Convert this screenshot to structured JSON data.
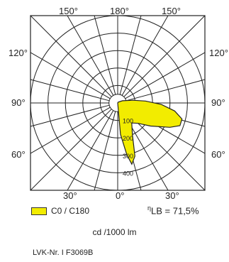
{
  "chart_data": {
    "type": "polar",
    "angle_labels": {
      "top": [
        "150°",
        "180°",
        "150°"
      ],
      "left": [
        "120°",
        "90°",
        "60°"
      ],
      "right": [
        "120°",
        "90°",
        "60°"
      ],
      "bottom": [
        "30°",
        "0°",
        "30°"
      ]
    },
    "radial_ticks": [
      100,
      200,
      300,
      400
    ],
    "rmax": 500,
    "series": [
      {
        "name": "C0 / C180",
        "color": "#f2ec00",
        "points": [
          {
            "angle": 0,
            "value": 0
          },
          {
            "angle": 5,
            "value": 180
          },
          {
            "angle": 10,
            "value": 300
          },
          {
            "angle": 13,
            "value": 360
          },
          {
            "angle": 18,
            "value": 320
          },
          {
            "angle": 25,
            "value": 200
          },
          {
            "angle": 35,
            "value": 140
          },
          {
            "angle": 45,
            "value": 165
          },
          {
            "angle": 55,
            "value": 230
          },
          {
            "angle": 65,
            "value": 330
          },
          {
            "angle": 70,
            "value": 380
          },
          {
            "angle": 76,
            "value": 380
          },
          {
            "angle": 82,
            "value": 330
          },
          {
            "angle": 88,
            "value": 250
          },
          {
            "angle": 94,
            "value": 160
          },
          {
            "angle": 100,
            "value": 90
          },
          {
            "angle": 115,
            "value": 30
          },
          {
            "angle": 150,
            "value": 5
          },
          {
            "angle": 180,
            "value": 0
          }
        ]
      }
    ]
  },
  "legend": {
    "label": "C0 / C180"
  },
  "efficiency": {
    "symbol": "η",
    "subscript": "LB",
    "value": " = 71,5%"
  },
  "unit_label": "cd /1000 lm",
  "code_label": "LVK-Nr. I F3069B"
}
